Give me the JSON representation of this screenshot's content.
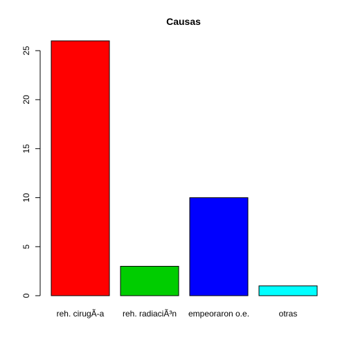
{
  "chart_data": {
    "type": "bar",
    "title": "Causas",
    "xlabel": "",
    "ylabel": "",
    "categories": [
      "reh. cirugÃ-a",
      "reh. radiaciÃ³n",
      "empeoraron o.e.",
      "otras"
    ],
    "values": [
      26,
      3,
      10,
      1
    ],
    "colors": [
      "#ff0000",
      "#00cd00",
      "#0000ff",
      "#00ffff"
    ],
    "yticks": [
      0,
      5,
      10,
      15,
      20,
      25
    ],
    "ylim": [
      0,
      26
    ],
    "grid": false,
    "legend": "none"
  }
}
